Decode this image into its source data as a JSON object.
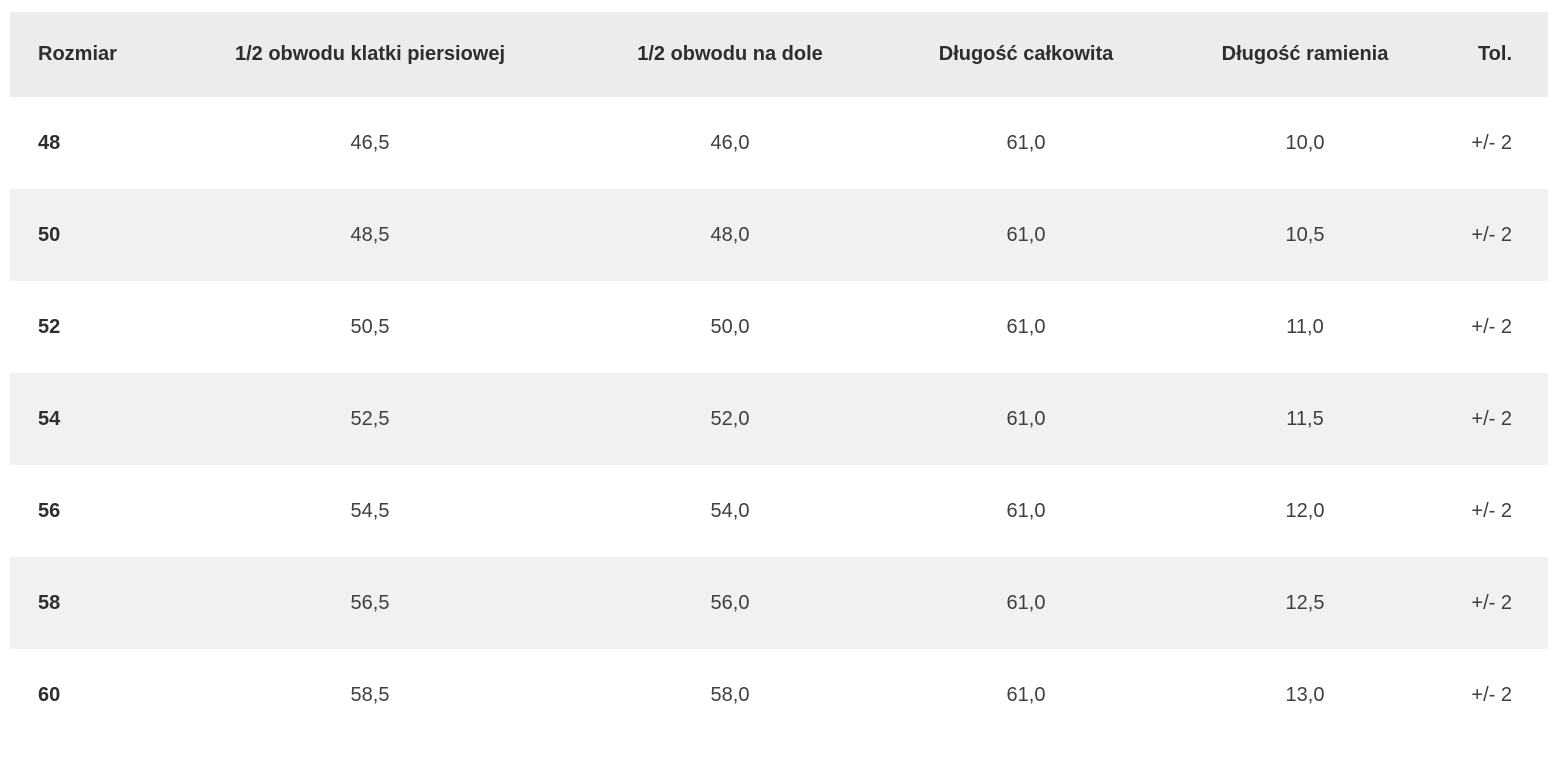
{
  "colors": {
    "header_bg": "#ececec",
    "row_alt_bg": "#f1f1f1",
    "header_text": "#2e2e2e",
    "cell_text": "#3f3f3f"
  },
  "table": {
    "columns": [
      {
        "key": "rozmiar",
        "label": "Rozmiar",
        "align": "left"
      },
      {
        "key": "pol-obwodu-klatki-piersiowej",
        "label": "1/2 obwodu klatki piersiowej",
        "align": "center"
      },
      {
        "key": "pol-obwodu-na-dole",
        "label": "1/2 obwodu na dole",
        "align": "center"
      },
      {
        "key": "dlugosc-calkowita",
        "label": "Długość całkowita",
        "align": "center"
      },
      {
        "key": "dlugosc-ramienia",
        "label": "Długość ramienia",
        "align": "center"
      },
      {
        "key": "tolerancja",
        "label": "Tol.",
        "align": "right"
      }
    ],
    "rows": [
      [
        "48",
        "46,5",
        "46,0",
        "61,0",
        "10,0",
        "+/- 2"
      ],
      [
        "50",
        "48,5",
        "48,0",
        "61,0",
        "10,5",
        "+/- 2"
      ],
      [
        "52",
        "50,5",
        "50,0",
        "61,0",
        "11,0",
        "+/- 2"
      ],
      [
        "54",
        "52,5",
        "52,0",
        "61,0",
        "11,5",
        "+/- 2"
      ],
      [
        "56",
        "54,5",
        "54,0",
        "61,0",
        "12,0",
        "+/- 2"
      ],
      [
        "58",
        "56,5",
        "56,0",
        "61,0",
        "12,5",
        "+/- 2"
      ],
      [
        "60",
        "58,5",
        "58,0",
        "61,0",
        "13,0",
        "+/- 2"
      ]
    ]
  },
  "chart_data": {
    "type": "table",
    "title": "",
    "columns": [
      "Rozmiar",
      "1/2 obwodu klatki piersiowej",
      "1/2 obwodu na dole",
      "Długość całkowita",
      "Długość ramienia",
      "Tol."
    ],
    "rows": [
      [
        "48",
        "46,5",
        "46,0",
        "61,0",
        "10,0",
        "+/- 2"
      ],
      [
        "50",
        "48,5",
        "48,0",
        "61,0",
        "10,5",
        "+/- 2"
      ],
      [
        "52",
        "50,5",
        "50,0",
        "61,0",
        "11,0",
        "+/- 2"
      ],
      [
        "54",
        "52,5",
        "52,0",
        "61,0",
        "11,5",
        "+/- 2"
      ],
      [
        "56",
        "54,5",
        "54,0",
        "61,0",
        "12,0",
        "+/- 2"
      ],
      [
        "58",
        "56,5",
        "56,0",
        "61,0",
        "12,5",
        "+/- 2"
      ],
      [
        "60",
        "58,5",
        "58,0",
        "61,0",
        "13,0",
        "+/- 2"
      ]
    ]
  }
}
